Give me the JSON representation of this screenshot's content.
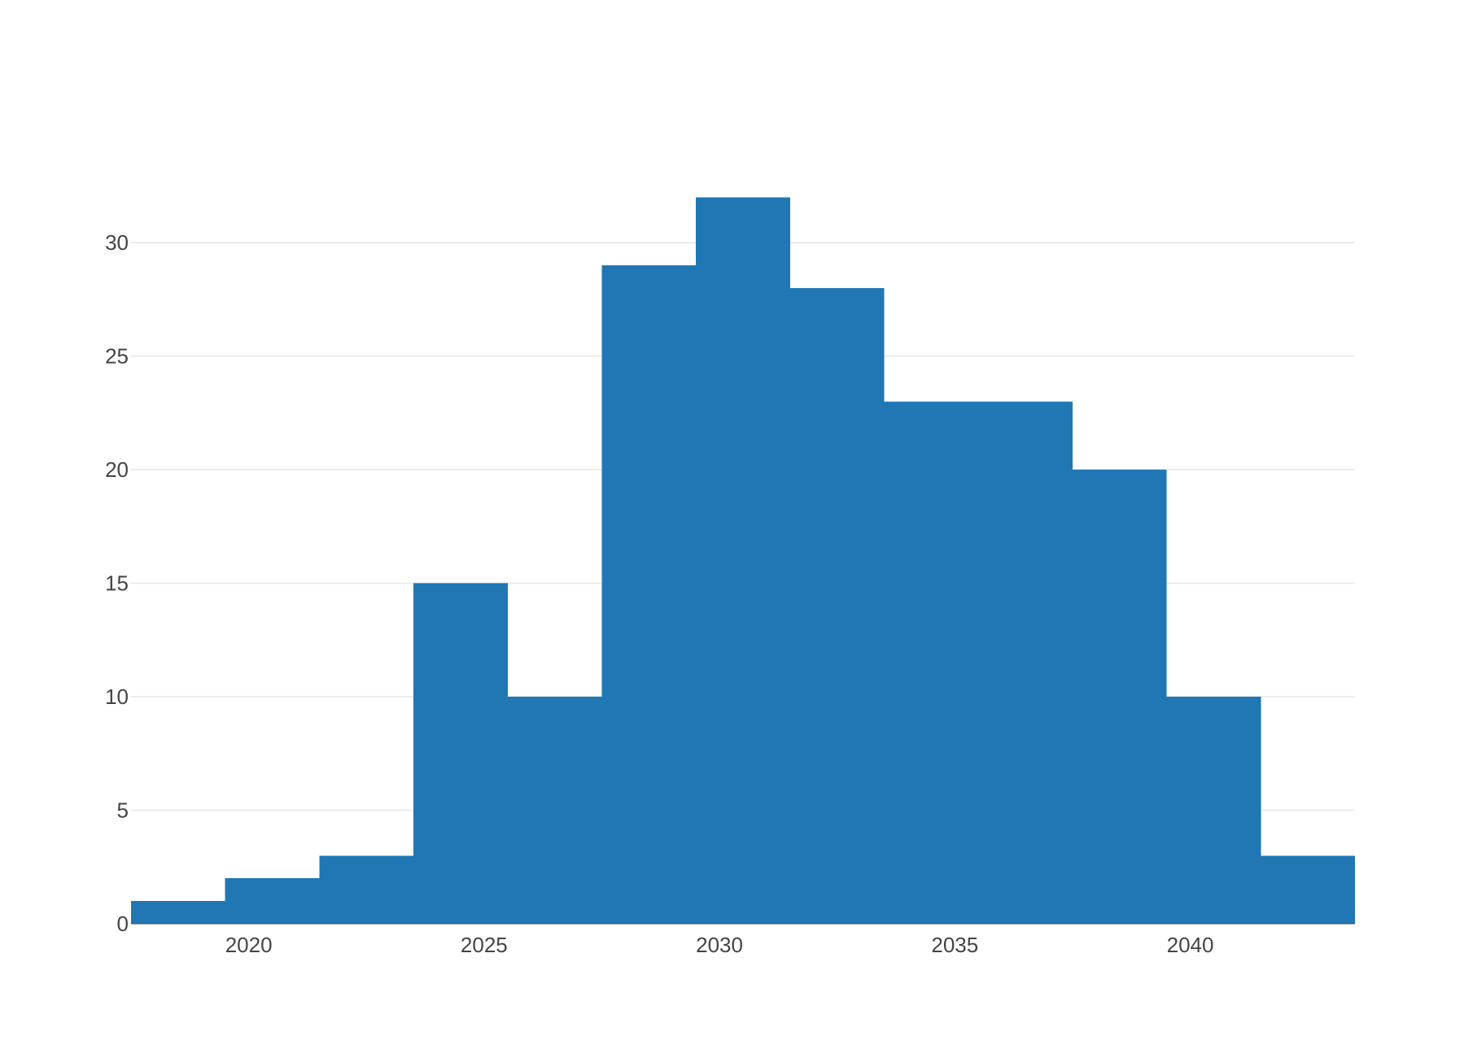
{
  "chart_data": {
    "type": "bar",
    "subtype": "histogram",
    "bins": [
      {
        "start": 2017.5,
        "end": 2019.5,
        "count": 1
      },
      {
        "start": 2019.5,
        "end": 2021.5,
        "count": 2
      },
      {
        "start": 2021.5,
        "end": 2023.5,
        "count": 3
      },
      {
        "start": 2023.5,
        "end": 2025.5,
        "count": 15
      },
      {
        "start": 2025.5,
        "end": 2027.5,
        "count": 10
      },
      {
        "start": 2027.5,
        "end": 2029.5,
        "count": 29
      },
      {
        "start": 2029.5,
        "end": 2031.5,
        "count": 32
      },
      {
        "start": 2031.5,
        "end": 2033.5,
        "count": 28
      },
      {
        "start": 2033.5,
        "end": 2035.5,
        "count": 23
      },
      {
        "start": 2035.5,
        "end": 2037.5,
        "count": 23
      },
      {
        "start": 2037.5,
        "end": 2039.5,
        "count": 20
      },
      {
        "start": 2039.5,
        "end": 2041.5,
        "count": 10
      },
      {
        "start": 2041.5,
        "end": 2043.5,
        "count": 3
      }
    ],
    "xlim": [
      2017.5,
      2043.5
    ],
    "ylim": [
      0,
      33.7
    ],
    "x_ticks": [
      "2020",
      "2025",
      "2030",
      "2035",
      "2040"
    ],
    "y_ticks": [
      "0",
      "5",
      "10",
      "15",
      "20",
      "25",
      "30"
    ],
    "title": "",
    "xlabel": "",
    "ylabel": "",
    "grid": "horizontal",
    "legend": "none",
    "color": "#2077b4"
  }
}
